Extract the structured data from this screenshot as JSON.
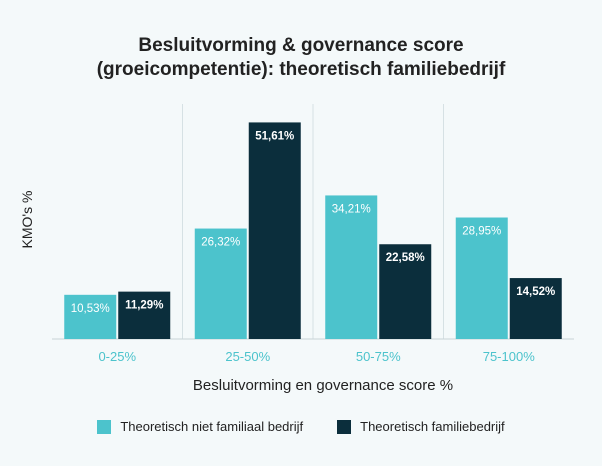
{
  "chart_data": {
    "type": "bar",
    "title_lines": [
      "Besluitvorming & governance score",
      "(groeicompetentie): theoretisch familiebedrijf"
    ],
    "xlabel": "Besluitvorming en governance score %",
    "ylabel": "KMO's %",
    "categories": [
      "0-25%",
      "25-50%",
      "50-75%",
      "75-100%"
    ],
    "series": [
      {
        "name": "Theoretisch niet familiaal bedrijf",
        "color": "#4cc3cc",
        "values": [
          10.53,
          26.32,
          34.21,
          28.95
        ],
        "labels": [
          "10,53%",
          "26,32%",
          "34,21%",
          "28,95%"
        ]
      },
      {
        "name": "Theoretisch familiebedrijf",
        "color": "#0b2e3c",
        "values": [
          11.29,
          51.61,
          22.58,
          14.52
        ],
        "labels": [
          "11,29%",
          "51,61%",
          "22,58%",
          "14,52%"
        ]
      }
    ],
    "ylim": [
      0,
      56
    ],
    "grid": false,
    "legend_position": "bottom",
    "tick_label_color": "#4cc3cc"
  }
}
